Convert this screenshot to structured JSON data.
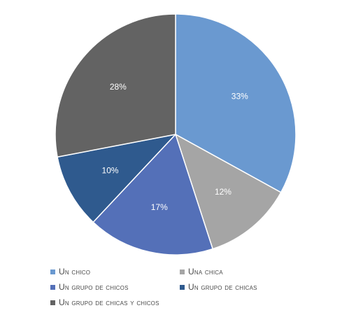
{
  "chart_data": {
    "type": "pie",
    "title": "",
    "categories": [
      "Un chico",
      "Una chica",
      "Un grupo de chicos",
      "Un grupo de chicas",
      "Un grupo de chicas y chicos"
    ],
    "values": [
      33,
      12,
      17,
      10,
      28
    ],
    "data_labels": [
      "33%",
      "12%",
      "17%",
      "10%",
      "28%"
    ],
    "colors": [
      "#6a99d0",
      "#a5a5a5",
      "#5470b8",
      "#2f5a8e",
      "#636363"
    ],
    "legend_position": "bottom",
    "start_angle_deg": 0,
    "direction": "clockwise"
  }
}
